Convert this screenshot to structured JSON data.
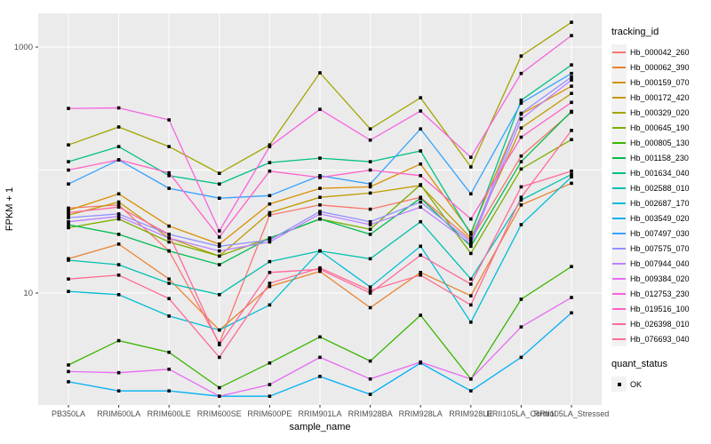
{
  "figure": {
    "bg_color": "#FFFFFF",
    "panel_bg_color": "#EBEBEB",
    "grid_color": "#FFFFFF",
    "tick_color": "#333333",
    "axis_text_color": "#4D4D4D",
    "point_color": "#000000"
  },
  "legend": {
    "tracking_title": "tracking_id",
    "quant_title": "quant_status",
    "quant_value": "OK"
  },
  "chart_data": {
    "type": "line",
    "title": "",
    "xlabel": "sample_name",
    "ylabel": "FPKM + 1",
    "y_scale": "log10",
    "ylim": [
      1.2,
      1800
    ],
    "y_tick_labels": [
      "10",
      "1000"
    ],
    "y_tick_values": [
      10,
      1000
    ],
    "y_gridline_values": [
      10,
      100,
      1000
    ],
    "grid": "on",
    "legend_position": "right",
    "marker": "small-black-square",
    "categories": [
      "PB350LA",
      "RRIM600LA",
      "RRIM600LE",
      "RRIM600SE",
      "RRIM600PE",
      "RRIM901LA",
      "RRIM928BA",
      "RRIM928LA",
      "RRIM928LE",
      "RRII105LA_Control",
      "RRII105LA_Stressed"
    ],
    "quant_status_all_points": "OK",
    "series": [
      {
        "name": "Hb_000042_260",
        "color": "#F8766D",
        "values": [
          49,
          52,
          22,
          3.9,
          43,
          52,
          48,
          60,
          27,
          130,
          295
        ]
      },
      {
        "name": "Hb_000062_390",
        "color": "#EA8331",
        "values": [
          19,
          25,
          13,
          5.0,
          11.3,
          15,
          7.6,
          14.7,
          9.5,
          52,
          78
        ]
      },
      {
        "name": "Hb_000159_070",
        "color": "#D89000",
        "values": [
          47,
          64,
          35,
          25,
          53,
          71,
          73,
          112,
          31,
          285,
          480
        ]
      },
      {
        "name": "Hb_000172_420",
        "color": "#C09B00",
        "values": [
          43,
          55,
          28,
          20,
          45,
          60,
          65,
          75,
          28,
          220,
          420
        ]
      },
      {
        "name": "Hb_000329_020",
        "color": "#A3A500",
        "values": [
          160,
          224,
          155,
          94,
          160,
          617,
          216,
          387,
          106,
          846,
          1590
        ]
      },
      {
        "name": "Hb_000645_190",
        "color": "#7CAE00",
        "values": [
          34,
          40,
          26,
          20,
          28,
          40,
          33,
          76,
          21,
          102,
          177
        ]
      },
      {
        "name": "Hb_000805_130",
        "color": "#39B600",
        "values": [
          2.6,
          4.1,
          3.3,
          1.7,
          2.7,
          4.4,
          2.8,
          6.6,
          2.0,
          8.9,
          16.4
        ]
      },
      {
        "name": "Hb_001158_230",
        "color": "#00BB4E",
        "values": [
          36,
          30,
          22,
          17,
          28,
          40,
          30,
          59,
          24,
          117,
          300
        ]
      },
      {
        "name": "Hb_001634_040",
        "color": "#00C087",
        "values": [
          117,
          155,
          90,
          77,
          115,
          125,
          117,
          143,
          30,
          370,
          716
        ]
      },
      {
        "name": "Hb_002588_010",
        "color": "#00C0AF",
        "values": [
          18.5,
          17,
          12,
          9.7,
          18,
          22,
          19,
          38,
          13,
          57,
          92
        ]
      },
      {
        "name": "Hb_002687_170",
        "color": "#00BCD8",
        "values": [
          10.3,
          9.7,
          6.5,
          5.0,
          8.0,
          22,
          11.2,
          24,
          5.8,
          36,
          88
        ]
      },
      {
        "name": "Hb_003549_020",
        "color": "#00B0F6",
        "values": [
          1.9,
          1.6,
          1.6,
          1.45,
          1.45,
          2.1,
          1.5,
          2.7,
          1.6,
          3.0,
          6.9
        ]
      },
      {
        "name": "Hb_007497_030",
        "color": "#35A2FF",
        "values": [
          77,
          121,
          71,
          59,
          62,
          90,
          77,
          216,
          64,
          350,
          610
        ]
      },
      {
        "name": "Hb_007575_070",
        "color": "#9590FF",
        "values": [
          41,
          44,
          30,
          24,
          27,
          46,
          38,
          55,
          26,
          290,
          570
        ]
      },
      {
        "name": "Hb_007944_040",
        "color": "#BC80FF",
        "values": [
          38,
          42,
          28,
          22,
          26,
          44,
          36,
          50,
          25,
          260,
          540
        ]
      },
      {
        "name": "Hb_009384_020",
        "color": "#E76BF3",
        "values": [
          2.3,
          2.25,
          2.4,
          1.45,
          1.8,
          3.0,
          2.0,
          2.75,
          2.0,
          5.3,
          9.2
        ]
      },
      {
        "name": "Hb_012753_230",
        "color": "#F763E0",
        "values": [
          317,
          320,
          256,
          32,
          155,
          312,
          175,
          302,
          127,
          610,
          1240
        ]
      },
      {
        "name": "Hb_019516_100",
        "color": "#FF61C9",
        "values": [
          100,
          121,
          95,
          28.5,
          98,
          87,
          100,
          90,
          40,
          185,
          355
        ]
      },
      {
        "name": "Hb_026398_010",
        "color": "#FF689E",
        "values": [
          45,
          50,
          30,
          3.8,
          14.7,
          15.6,
          10,
          20.3,
          11.8,
          73,
          98
        ]
      },
      {
        "name": "Hb_076693_040",
        "color": "#FF6C92",
        "values": [
          13,
          14,
          9,
          3.0,
          12,
          16,
          10.5,
          14,
          8,
          60,
          210
        ]
      }
    ]
  }
}
